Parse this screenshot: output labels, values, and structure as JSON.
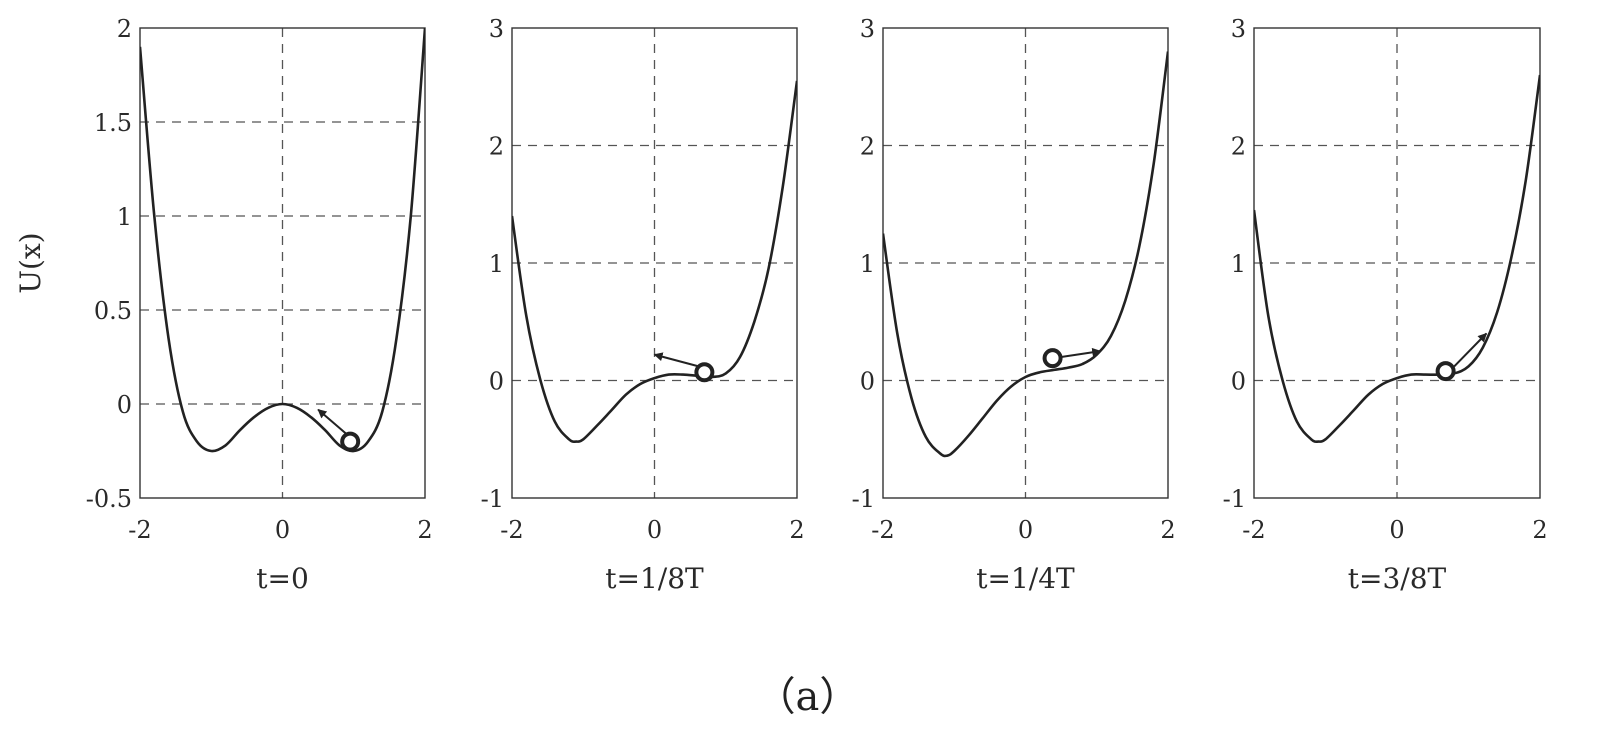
{
  "caption": "（a）",
  "chart_data": [
    {
      "type": "line",
      "xlabel": "t=0",
      "ylabel": "U(x)",
      "xlim": [
        -2,
        2
      ],
      "ylim": [
        -0.5,
        2
      ],
      "xticks": [
        -2,
        0,
        2
      ],
      "yticks": [
        -0.5,
        0,
        0.5,
        1,
        1.5,
        2
      ],
      "xtick_labels": [
        "-2",
        "0",
        "2"
      ],
      "ytick_labels": [
        "-0.5",
        "0",
        "0.5",
        "1",
        "1.5",
        "2"
      ],
      "grid": true,
      "series": [
        {
          "x": [
            -2,
            -1.8,
            -1.6,
            -1.4,
            -1.2,
            -1.0,
            -0.8,
            -0.6,
            -0.4,
            -0.2,
            0,
            0.2,
            0.4,
            0.6,
            0.8,
            1.0,
            1.2,
            1.4,
            1.6,
            1.8,
            2
          ],
          "y": [
            1.9,
            1.0,
            0.35,
            -0.04,
            -0.2,
            -0.25,
            -0.22,
            -0.14,
            -0.07,
            -0.02,
            0,
            -0.02,
            -0.07,
            -0.14,
            -0.22,
            -0.25,
            -0.2,
            -0.04,
            0.35,
            1.0,
            2.0
          ]
        }
      ],
      "ball": {
        "x": 0.95,
        "y": -0.2
      },
      "arrow": {
        "from": [
          0.9,
          -0.16
        ],
        "to": [
          0.5,
          -0.03
        ]
      }
    },
    {
      "type": "line",
      "xlabel": "t=1/8T",
      "ylabel": "",
      "xlim": [
        -2,
        2
      ],
      "ylim": [
        -1,
        3
      ],
      "xticks": [
        -2,
        0,
        2
      ],
      "yticks": [
        -1,
        0,
        1,
        2,
        3
      ],
      "xtick_labels": [
        "-2",
        "0",
        "2"
      ],
      "ytick_labels": [
        "-1",
        "0",
        "1",
        "2",
        "3"
      ],
      "grid": true,
      "series": [
        {
          "x": [
            -2,
            -1.8,
            -1.6,
            -1.4,
            -1.2,
            -1.1,
            -1.0,
            -0.8,
            -0.6,
            -0.4,
            -0.2,
            0,
            0.2,
            0.4,
            0.6,
            0.8,
            1.0,
            1.2,
            1.4,
            1.6,
            1.8,
            2
          ],
          "y": [
            1.4,
            0.55,
            0.0,
            -0.35,
            -0.5,
            -0.52,
            -0.5,
            -0.38,
            -0.25,
            -0.12,
            -0.03,
            0.02,
            0.05,
            0.05,
            0.04,
            0.03,
            0.06,
            0.2,
            0.5,
            0.95,
            1.65,
            2.55
          ]
        }
      ],
      "ball": {
        "x": 0.7,
        "y": 0.07
      },
      "arrow": {
        "from": [
          0.62,
          0.12
        ],
        "to": [
          0.0,
          0.22
        ]
      }
    },
    {
      "type": "line",
      "xlabel": "t=1/4T",
      "ylabel": "",
      "xlim": [
        -2,
        2
      ],
      "ylim": [
        -1,
        3
      ],
      "xticks": [
        -2,
        0,
        2
      ],
      "yticks": [
        -1,
        0,
        1,
        2,
        3
      ],
      "xtick_labels": [
        "-2",
        "0",
        "2"
      ],
      "ytick_labels": [
        "-1",
        "0",
        "1",
        "2",
        "3"
      ],
      "grid": true,
      "series": [
        {
          "x": [
            -2,
            -1.8,
            -1.6,
            -1.4,
            -1.2,
            -1.1,
            -1.0,
            -0.8,
            -0.6,
            -0.4,
            -0.2,
            0,
            0.2,
            0.4,
            0.6,
            0.8,
            1.0,
            1.2,
            1.4,
            1.6,
            1.8,
            2
          ],
          "y": [
            1.25,
            0.4,
            -0.15,
            -0.48,
            -0.62,
            -0.64,
            -0.6,
            -0.47,
            -0.32,
            -0.17,
            -0.05,
            0.03,
            0.07,
            0.09,
            0.11,
            0.14,
            0.22,
            0.38,
            0.68,
            1.15,
            1.85,
            2.8
          ]
        }
      ],
      "ball": {
        "x": 0.38,
        "y": 0.19
      },
      "arrow": {
        "from": [
          0.5,
          0.2
        ],
        "to": [
          1.05,
          0.25
        ]
      }
    },
    {
      "type": "line",
      "xlabel": "t=3/8T",
      "ylabel": "",
      "xlim": [
        -2,
        2
      ],
      "ylim": [
        -1,
        3
      ],
      "xticks": [
        -2,
        0,
        2
      ],
      "yticks": [
        -1,
        0,
        1,
        2,
        3
      ],
      "xtick_labels": [
        "-2",
        "0",
        "2"
      ],
      "ytick_labels": [
        "-1",
        "0",
        "1",
        "2",
        "3"
      ],
      "grid": true,
      "series": [
        {
          "x": [
            -2,
            -1.8,
            -1.6,
            -1.4,
            -1.2,
            -1.1,
            -1.0,
            -0.8,
            -0.6,
            -0.4,
            -0.2,
            0,
            0.2,
            0.4,
            0.6,
            0.8,
            1.0,
            1.2,
            1.4,
            1.6,
            1.8,
            2
          ],
          "y": [
            1.45,
            0.55,
            0.0,
            -0.35,
            -0.5,
            -0.52,
            -0.5,
            -0.38,
            -0.25,
            -0.12,
            -0.03,
            0.02,
            0.05,
            0.05,
            0.05,
            0.06,
            0.12,
            0.28,
            0.58,
            1.05,
            1.7,
            2.6
          ]
        }
      ],
      "ball": {
        "x": 0.68,
        "y": 0.08
      },
      "arrow": {
        "from": [
          0.8,
          0.12
        ],
        "to": [
          1.25,
          0.4
        ]
      }
    }
  ]
}
